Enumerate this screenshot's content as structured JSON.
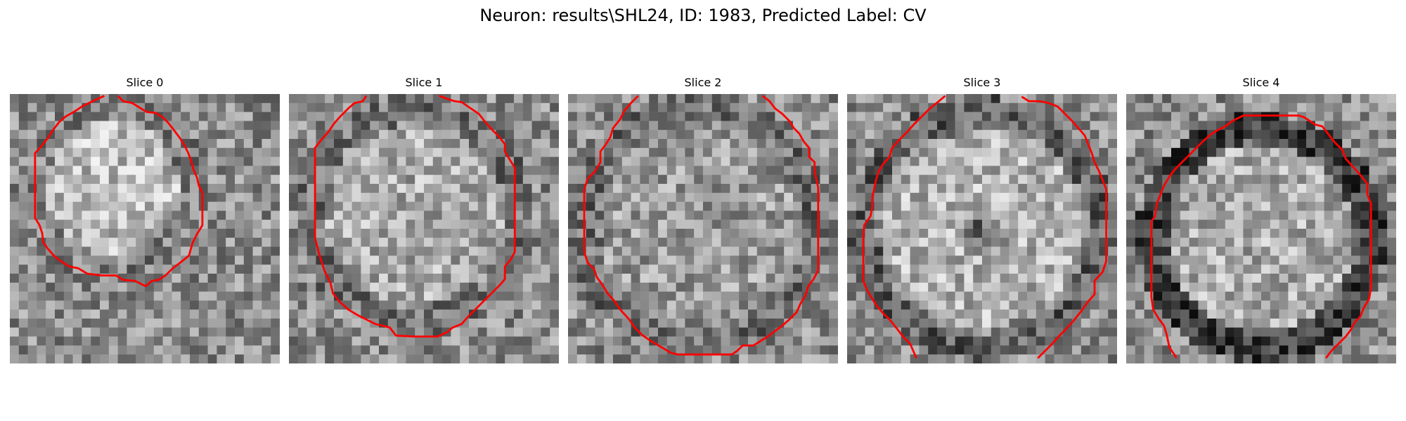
{
  "figure": {
    "title": "Neuron: results\\SHL24, ID: 1983, Predicted Label: CV"
  },
  "slices": [
    {
      "label": "Slice 0"
    },
    {
      "label": "Slice 1"
    },
    {
      "label": "Slice 2"
    },
    {
      "label": "Slice 3"
    },
    {
      "label": "Slice 4"
    }
  ],
  "colors": {
    "contour": "#ff0000",
    "colormap": "grayscale"
  }
}
